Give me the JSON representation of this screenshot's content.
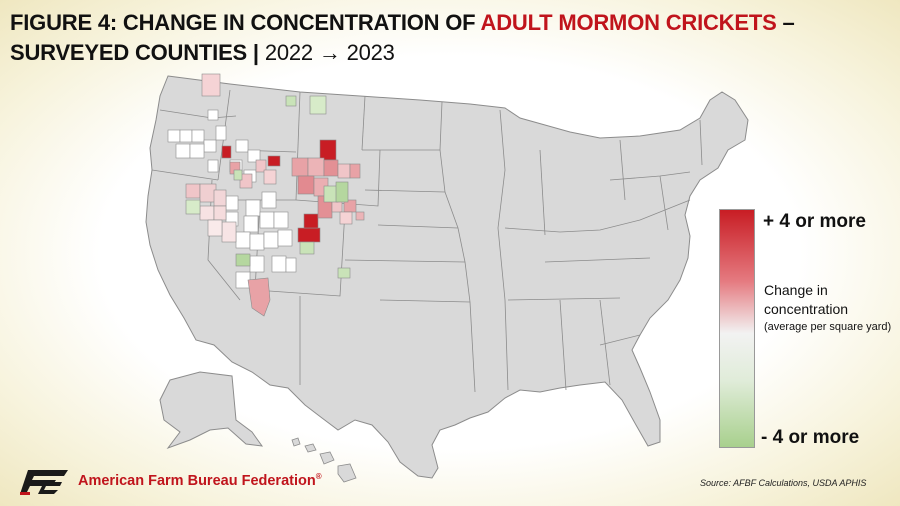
{
  "title": {
    "prefix": "FIGURE 4: CHANGE IN CONCENTRATION OF",
    "highlight": "ADULT MORMON CRICKETS",
    "dash": "–",
    "line2": "SURVEYED COUNTIES |",
    "years": "2022 → 2023"
  },
  "legend": {
    "top_label": "+ 4 or more",
    "mid_label": "Change in concentration",
    "sub_label": "(average per square yard)",
    "bottom_label": "- 4 or more",
    "colors": {
      "high": "#c81d24",
      "neutral": "#f2f2f2",
      "low": "#a8d08d"
    }
  },
  "footer": {
    "source": "Source: AFBF Calculations, USDA APHIS",
    "org": "American Farm Bureau Federation",
    "trademark": "®"
  },
  "colors": {
    "accent": "#c0141c",
    "land": "#d9d9d9",
    "border": "#888888"
  }
}
